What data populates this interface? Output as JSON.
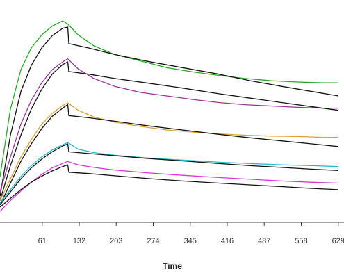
{
  "chart_data": {
    "type": "line",
    "xlabel": "Time",
    "ylabel": "",
    "title": "",
    "xlim": [
      -20,
      640
    ],
    "ylim": [
      -50,
      460
    ],
    "x_ticks": [
      61,
      132,
      203,
      274,
      345,
      416,
      487,
      558,
      629
    ],
    "x_tick_labels": [
      "61",
      "132",
      "203",
      "274",
      "345",
      "416",
      "487",
      "558",
      "629"
    ],
    "grid": false,
    "legend": "none",
    "series": [
      {
        "color": "#22aa22",
        "points": [
          [
            -20,
            55
          ],
          [
            0,
            210
          ],
          [
            20,
            300
          ],
          [
            40,
            350
          ],
          [
            60,
            380
          ],
          [
            80,
            400
          ],
          [
            100,
            412
          ],
          [
            110,
            405
          ],
          [
            130,
            380
          ],
          [
            160,
            355
          ],
          [
            200,
            335
          ],
          [
            250,
            320
          ],
          [
            300,
            305
          ],
          [
            350,
            295
          ],
          [
            400,
            287
          ],
          [
            450,
            280
          ],
          [
            500,
            275
          ],
          [
            550,
            272
          ],
          [
            600,
            270
          ],
          [
            629,
            270
          ]
        ]
      },
      {
        "color": "#111111",
        "points": [
          [
            -20,
            10
          ],
          [
            0,
            150
          ],
          [
            20,
            250
          ],
          [
            40,
            310
          ],
          [
            60,
            350
          ],
          [
            80,
            378
          ],
          [
            100,
            395
          ],
          [
            110,
            398
          ],
          [
            112,
            360
          ],
          [
            150,
            350
          ],
          [
            200,
            335
          ],
          [
            260,
            320
          ],
          [
            330,
            305
          ],
          [
            400,
            290
          ],
          [
            460,
            275
          ],
          [
            520,
            262
          ],
          [
            580,
            250
          ],
          [
            629,
            240
          ]
        ]
      },
      {
        "color": "#993399",
        "points": [
          [
            -20,
            20
          ],
          [
            0,
            100
          ],
          [
            20,
            175
          ],
          [
            40,
            230
          ],
          [
            60,
            270
          ],
          [
            80,
            300
          ],
          [
            100,
            318
          ],
          [
            110,
            325
          ],
          [
            130,
            302
          ],
          [
            160,
            280
          ],
          [
            200,
            262
          ],
          [
            250,
            248
          ],
          [
            300,
            240
          ],
          [
            350,
            232
          ],
          [
            400,
            225
          ],
          [
            450,
            220
          ],
          [
            500,
            217
          ],
          [
            550,
            214
          ],
          [
            600,
            212
          ],
          [
            629,
            212
          ]
        ]
      },
      {
        "color": "#111111",
        "points": [
          [
            -20,
            0
          ],
          [
            0,
            80
          ],
          [
            20,
            150
          ],
          [
            40,
            210
          ],
          [
            60,
            255
          ],
          [
            80,
            290
          ],
          [
            100,
            312
          ],
          [
            110,
            318
          ],
          [
            112,
            296
          ],
          [
            150,
            290
          ],
          [
            200,
            280
          ],
          [
            260,
            270
          ],
          [
            330,
            258
          ],
          [
            400,
            245
          ],
          [
            460,
            235
          ],
          [
            520,
            225
          ],
          [
            580,
            215
          ],
          [
            629,
            207
          ]
        ]
      },
      {
        "color": "#e0a030",
        "points": [
          [
            -20,
            0
          ],
          [
            0,
            50
          ],
          [
            20,
            100
          ],
          [
            40,
            140
          ],
          [
            60,
            175
          ],
          [
            80,
            200
          ],
          [
            100,
            218
          ],
          [
            110,
            224
          ],
          [
            130,
            207
          ],
          [
            160,
            192
          ],
          [
            200,
            180
          ],
          [
            250,
            170
          ],
          [
            300,
            162
          ],
          [
            350,
            157
          ],
          [
            400,
            153
          ],
          [
            450,
            150
          ],
          [
            500,
            148
          ],
          [
            550,
            147
          ],
          [
            600,
            145
          ],
          [
            629,
            145
          ]
        ]
      },
      {
        "color": "#111111",
        "points": [
          [
            -20,
            -10
          ],
          [
            0,
            40
          ],
          [
            20,
            90
          ],
          [
            40,
            130
          ],
          [
            60,
            165
          ],
          [
            80,
            193
          ],
          [
            100,
            212
          ],
          [
            110,
            220
          ],
          [
            112,
            195
          ],
          [
            150,
            190
          ],
          [
            200,
            182
          ],
          [
            260,
            172
          ],
          [
            330,
            162
          ],
          [
            400,
            152
          ],
          [
            460,
            144
          ],
          [
            520,
            137
          ],
          [
            580,
            130
          ],
          [
            629,
            124
          ]
        ]
      },
      {
        "color": "#22bbcc",
        "points": [
          [
            -20,
            -5
          ],
          [
            0,
            25
          ],
          [
            20,
            55
          ],
          [
            40,
            80
          ],
          [
            60,
            100
          ],
          [
            80,
            116
          ],
          [
            100,
            128
          ],
          [
            110,
            133
          ],
          [
            130,
            118
          ],
          [
            160,
            110
          ],
          [
            200,
            104
          ],
          [
            260,
            98
          ],
          [
            330,
            93
          ],
          [
            400,
            88
          ],
          [
            460,
            85
          ],
          [
            520,
            82
          ],
          [
            580,
            80
          ],
          [
            629,
            78
          ]
        ]
      },
      {
        "color": "#111111",
        "points": [
          [
            -20,
            -10
          ],
          [
            0,
            20
          ],
          [
            20,
            50
          ],
          [
            40,
            75
          ],
          [
            60,
            95
          ],
          [
            80,
            112
          ],
          [
            100,
            125
          ],
          [
            110,
            130
          ],
          [
            112,
            112
          ],
          [
            150,
            108
          ],
          [
            200,
            103
          ],
          [
            260,
            97
          ],
          [
            330,
            91
          ],
          [
            400,
            85
          ],
          [
            460,
            80
          ],
          [
            520,
            76
          ],
          [
            580,
            72
          ],
          [
            629,
            69
          ]
        ]
      },
      {
        "color": "#dd33dd",
        "points": [
          [
            -20,
            -25
          ],
          [
            0,
            0
          ],
          [
            20,
            22
          ],
          [
            40,
            42
          ],
          [
            60,
            60
          ],
          [
            80,
            75
          ],
          [
            100,
            85
          ],
          [
            110,
            90
          ],
          [
            130,
            82
          ],
          [
            160,
            76
          ],
          [
            200,
            70
          ],
          [
            260,
            64
          ],
          [
            330,
            58
          ],
          [
            400,
            53
          ],
          [
            460,
            49
          ],
          [
            520,
            45
          ],
          [
            580,
            42
          ],
          [
            629,
            40
          ]
        ]
      },
      {
        "color": "#111111",
        "points": [
          [
            -20,
            -15
          ],
          [
            0,
            5
          ],
          [
            20,
            25
          ],
          [
            40,
            42
          ],
          [
            60,
            56
          ],
          [
            80,
            68
          ],
          [
            100,
            78
          ],
          [
            110,
            82
          ],
          [
            112,
            65
          ],
          [
            150,
            62
          ],
          [
            200,
            57
          ],
          [
            260,
            51
          ],
          [
            330,
            45
          ],
          [
            400,
            40
          ],
          [
            460,
            36
          ],
          [
            520,
            32
          ],
          [
            580,
            28
          ],
          [
            629,
            25
          ]
        ]
      }
    ]
  }
}
